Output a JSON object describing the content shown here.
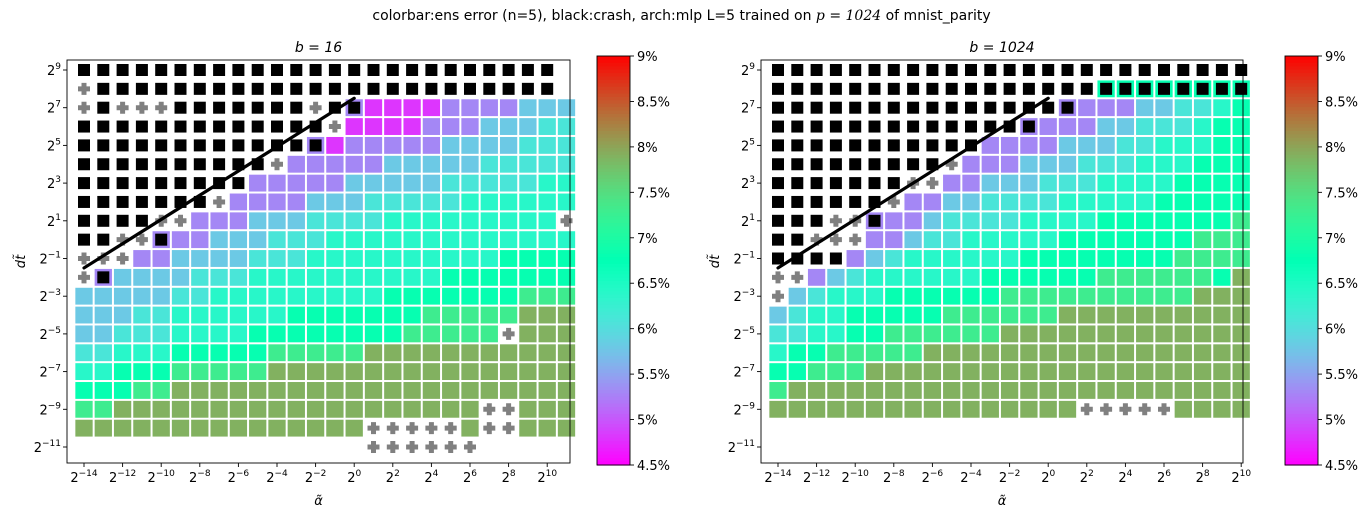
{
  "suptitle": {
    "prefix": "colorbar:ens error (n=5),   black:crash,   arch:mlp L=5 trained on ",
    "p_expr": "p = 1024",
    "suffix": " of mnist_parity"
  },
  "colors": {
    "crash": "#000000",
    "cross": "#808080",
    "cell_border": "#ffffff",
    "fit_line": "#000000",
    "colormap": "rainbow"
  },
  "chart_data": [
    {
      "type": "heatmap",
      "title": "b = 16",
      "xlabel": "α̃",
      "ylabel": "dt̃",
      "x_exponents": [
        -14,
        -13,
        -12,
        -11,
        -10,
        -9,
        -8,
        -7,
        -6,
        -5,
        -4,
        -3,
        -2,
        -1,
        0,
        1,
        2,
        3,
        4,
        5,
        6,
        7,
        8,
        9,
        10,
        11
      ],
      "y_exponents": [
        9,
        8,
        7,
        6,
        5,
        4,
        3,
        2,
        1,
        0,
        -1,
        -2,
        -3,
        -4,
        -5,
        -6,
        -7,
        -8,
        -9,
        -10,
        -11
      ],
      "x_ticks": [
        -14,
        -12,
        -10,
        -8,
        -6,
        -4,
        -2,
        0,
        2,
        4,
        6,
        8,
        10
      ],
      "y_ticks": [
        9,
        7,
        5,
        3,
        1,
        -1,
        -3,
        -5,
        -7,
        -9,
        -11
      ],
      "scale": "log2",
      "fit_line": {
        "from": [
          -14,
          -1.5
        ],
        "to": [
          0,
          7.5
        ]
      },
      "rows": [
        "CCCCCCCCCCCCCCCCCCCCCCCCC.",
        "XCCCCCCCCCCCCCCCCCCCCCCCC.",
        "XCXXXCCCCCCCXCKaaaabbbbccc",
        "CCCCCCCCCCCCCXaaaabbbcccdd",
        "CCCCCCCCCCCCKabbbbbccccddd",
        "CCCCCCCCCCXbbbbbcccccddddd",
        "CCCCCCCCCbbbbbcccccdddddee",
        "CCCCCCCXbbbbcccdddddeeeeee",
        "CCCCXXbbbcccddddeeeeeeeeeX",
        "CCXXKbbcccdddeeeeeeeeeeeee",
        "XXXbbccccdddeeeeeeeeeeffff",
        "XKccccdddeeeeeeeeeefffffff",
        "cccccddeeeeeeeeefffffffggg",
        "cccddeeeeeefffffffggggghhh",
        "ccdddeeeeffffffffgggggXhhh",
        "ddeeefffffggggghhhhhhhhhhh",
        "eefffggggghhhhhhhhhhhhhhhh",
        "fffgghhhhhhhhhhhhhhhhhhhhh",
        "gghhhhhhhhhhhhhhhhhhhXXhhh",
        "hhhhhhhhhhhhhhhXXXXXhXXhhh",
        "...............XXXXXX....."
      ]
    },
    {
      "type": "heatmap",
      "title": "b = 1024",
      "xlabel": "α̃",
      "ylabel": "dt̃",
      "x_exponents": [
        -14,
        -13,
        -12,
        -11,
        -10,
        -9,
        -8,
        -7,
        -6,
        -5,
        -4,
        -3,
        -2,
        -1,
        0,
        1,
        2,
        3,
        4,
        5,
        6,
        7,
        8,
        9,
        10
      ],
      "y_exponents": [
        9,
        8,
        7,
        6,
        5,
        4,
        3,
        2,
        1,
        0,
        -1,
        -2,
        -3,
        -4,
        -5,
        -6,
        -7,
        -8,
        -9,
        -10,
        -11
      ],
      "x_ticks": [
        -14,
        -12,
        -10,
        -8,
        -6,
        -4,
        -2,
        0,
        2,
        4,
        6,
        8,
        10
      ],
      "y_ticks": [
        9,
        7,
        5,
        3,
        1,
        -1,
        -3,
        -5,
        -7,
        -9,
        -11
      ],
      "scale": "log2",
      "fit_line": {
        "from": [
          -14,
          -1.5
        ],
        "to": [
          0,
          7.5
        ]
      },
      "rows": [
        "CCCCCCCCCCCCCCCCCCCCCCCCC",
        "CCCCCCCCCCCCCCCCCWWWWWWWW",
        "CCCCCCCCCCCCCCCKbbbccddef",
        "CCCCCCCCCCCCCKbbbccdddeff",
        "CCCCCCCCCCCbbbbcccddeeeff",
        "CCCCCCCCCXbbbcccdddeeefff",
        "CCCCCCCXXbbcccdddeeeeffff",
        "CCCCCCXbbccddddeeeeefffff",
        "CCCXXKbbcddddeeeefffffffg",
        "CCXXXbbcddeeeeefffffffggg",
        "CCCCbcdeeeeeeffffffffgggg",
        "XXbcdeeeeeeffffffggggggfh",
        "Xcdeeeffffffgggggggggghhh",
        "cdeefffffgggggghhhhhhhhhh",
        "ddeeffgggggghhhhhhhhhhhhh",
        "effggggghhhhhhhhhhhhhhhhh",
        "ffggghhhhhhhhhhhhhhhhhhhh",
        "ghhhhhhhhhhhhhhhhhhhhhhhh",
        "hhhhhhhhhhhhhhhhXXXXXhhhh",
        ".........................",
        "........................."
      ]
    }
  ],
  "level_values": {
    "a": 0.048,
    "b": 0.053,
    "c": 0.058,
    "d": 0.061,
    "e": 0.064,
    "f": 0.068,
    "g": 0.073,
    "h": 0.079,
    "j": 0.083
  },
  "colorbar": {
    "min": 0.045,
    "max": 0.09,
    "ticks": [
      "4.5%",
      "5%",
      "5.5%",
      "6%",
      "6.5%",
      "7%",
      "7.5%",
      "8%",
      "8.5%",
      "9%"
    ]
  }
}
